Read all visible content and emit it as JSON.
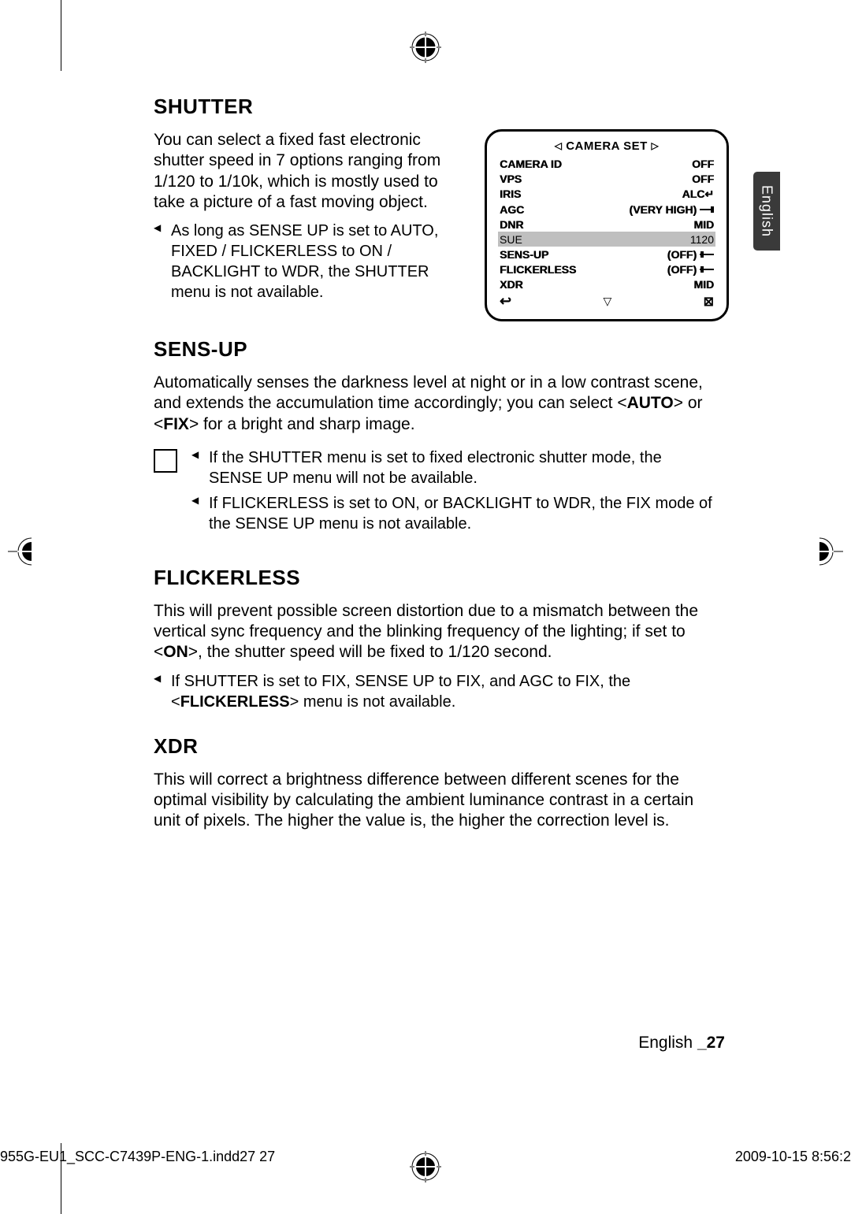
{
  "sections": {
    "shutter": {
      "heading": "SHUTTER",
      "body": "You can select a fixed fast electronic shutter speed in 7 options ranging from 1/120 to 1/10k, which is mostly used to take a picture of a fast moving object.",
      "notes": [
        "As long as SENSE UP is set to AUTO, FIXED / FLICKERLESS to ON / BACKLIGHT to WDR, the SHUTTER menu is not available."
      ]
    },
    "sensup": {
      "heading": "SENS-UP",
      "body_pre": "Automatically senses the darkness level at night or in a low contrast scene, and extends the accumulation time accordingly; you can select <",
      "opt1": "AUTO",
      "mid": "> or <",
      "opt2": "FIX",
      "body_post": "> for a bright and sharp image.",
      "notes": [
        "If the SHUTTER menu is set to fixed electronic shutter mode, the SENSE UP menu will not be available.",
        "If FLICKERLESS is set to ON, or BACKLIGHT to WDR, the FIX mode of the SENSE UP menu is not available."
      ]
    },
    "flicker": {
      "heading": "FLICKERLESS",
      "body_pre": "This will prevent possible screen distortion due to a mismatch between the vertical sync frequency and the blinking frequency of the lighting; if set to <",
      "opt": "ON",
      "body_post": ">, the shutter speed will be fixed to 1/120 second.",
      "note_pre": "If SHUTTER is set to FIX, SENSE UP to FIX, and AGC to FIX, the <",
      "note_bold": "FLICKERLESS",
      "note_post": "> menu is not available."
    },
    "xdr": {
      "heading": "XDR",
      "body": "This will correct a brightness difference between different scenes for the optimal visibility by calculating the ambient luminance contrast in a certain unit of pixels. The higher the value is, the higher the correction level is."
    }
  },
  "osd": {
    "title": "CAMERA SET",
    "rows": [
      {
        "label": "CAMERA ID",
        "val": "OFF",
        "slider": false
      },
      {
        "label": "VPS",
        "val": "OFF",
        "slider": false
      },
      {
        "label": "IRIS",
        "val": "ALC↵",
        "slider": false
      },
      {
        "label": "AGC",
        "val": "(VERY HIGH)",
        "slider": true,
        "knob": 14
      },
      {
        "label": "DNR",
        "val": "MID",
        "slider": false
      },
      {
        "label": "SUE",
        "val": "1120",
        "slider": false,
        "sel": true
      },
      {
        "label": "SENS-UP",
        "val": "(OFF)",
        "slider": true,
        "knob": 1
      },
      {
        "label": "FLICKERLESS",
        "val": "(OFF)",
        "slider": true,
        "knob": 1
      },
      {
        "label": "XDR",
        "val": "MID",
        "slider": false
      }
    ],
    "return_icon": "↩",
    "down": "▽",
    "grid": "⊠"
  },
  "lang_tab": "English",
  "footer": {
    "lang": "English ",
    "page": "_27"
  },
  "print": {
    "left": "955G-EU1_SCC-C7439P-ENG-1.indd27   27",
    "right": "2009-10-15   8:56:2"
  }
}
